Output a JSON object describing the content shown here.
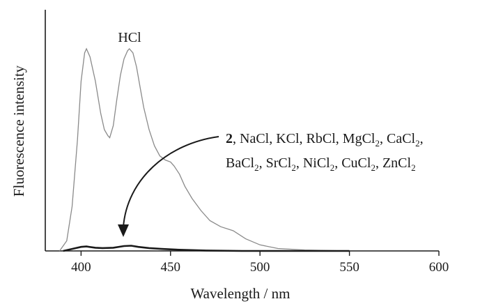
{
  "chart_data": {
    "type": "line",
    "xlabel": "Wavelength / nm",
    "ylabel": "Fluorescence intensity",
    "xlim": [
      380,
      600
    ],
    "ylim": [
      0,
      1.1
    ],
    "xticks": [
      400,
      450,
      500,
      550,
      600
    ],
    "xtick_labels": [
      "400",
      "450",
      "500",
      "550",
      "600"
    ],
    "yticks_shown": false,
    "grid": false,
    "series": [
      {
        "name": "HCl",
        "color": "#8a8a8a",
        "points": [
          [
            388,
            0.0
          ],
          [
            392,
            0.05
          ],
          [
            395,
            0.22
          ],
          [
            398,
            0.55
          ],
          [
            400,
            0.84
          ],
          [
            402,
            0.98
          ],
          [
            403,
            1.0
          ],
          [
            405,
            0.96
          ],
          [
            408,
            0.84
          ],
          [
            411,
            0.68
          ],
          [
            413,
            0.6
          ],
          [
            415,
            0.57
          ],
          [
            416,
            0.56
          ],
          [
            418,
            0.62
          ],
          [
            420,
            0.75
          ],
          [
            422,
            0.87
          ],
          [
            424,
            0.95
          ],
          [
            426,
            0.99
          ],
          [
            427,
            1.0
          ],
          [
            429,
            0.98
          ],
          [
            431,
            0.91
          ],
          [
            433,
            0.81
          ],
          [
            435,
            0.71
          ],
          [
            438,
            0.6
          ],
          [
            441,
            0.52
          ],
          [
            444,
            0.47
          ],
          [
            447,
            0.45
          ],
          [
            450,
            0.44
          ],
          [
            452,
            0.42
          ],
          [
            455,
            0.38
          ],
          [
            458,
            0.32
          ],
          [
            462,
            0.26
          ],
          [
            467,
            0.2
          ],
          [
            472,
            0.15
          ],
          [
            478,
            0.12
          ],
          [
            485,
            0.1
          ],
          [
            492,
            0.06
          ],
          [
            500,
            0.03
          ],
          [
            510,
            0.012
          ],
          [
            525,
            0.005
          ],
          [
            550,
            0.0
          ]
        ]
      },
      {
        "name": "2, NaCl, KCl, RbCl, MgCl2, CaCl2, BaCl2, SrCl2, NiCl2, CuCl2, ZnCl2",
        "color": "#1a1a1a",
        "points": [
          [
            390,
            0.0
          ],
          [
            395,
            0.01
          ],
          [
            400,
            0.02
          ],
          [
            403,
            0.022
          ],
          [
            408,
            0.016
          ],
          [
            412,
            0.014
          ],
          [
            418,
            0.016
          ],
          [
            424,
            0.024
          ],
          [
            428,
            0.026
          ],
          [
            432,
            0.02
          ],
          [
            438,
            0.014
          ],
          [
            445,
            0.01
          ],
          [
            455,
            0.006
          ],
          [
            470,
            0.002
          ],
          [
            490,
            0.0
          ],
          [
            550,
            0.0
          ]
        ]
      }
    ],
    "annotations": {
      "hcl": "HCl",
      "others_line1": {
        "bold": "2",
        "parts": [
          ", NaCl, KCl, RbCl, MgCl",
          "2",
          ", CaCl",
          "2",
          ","
        ]
      },
      "others_line2": {
        "parts": [
          "BaCl",
          "2",
          ", SrCl",
          "2",
          ", NiCl",
          "2",
          ", CuCl",
          "2",
          ", ZnCl",
          "2"
        ]
      }
    }
  }
}
